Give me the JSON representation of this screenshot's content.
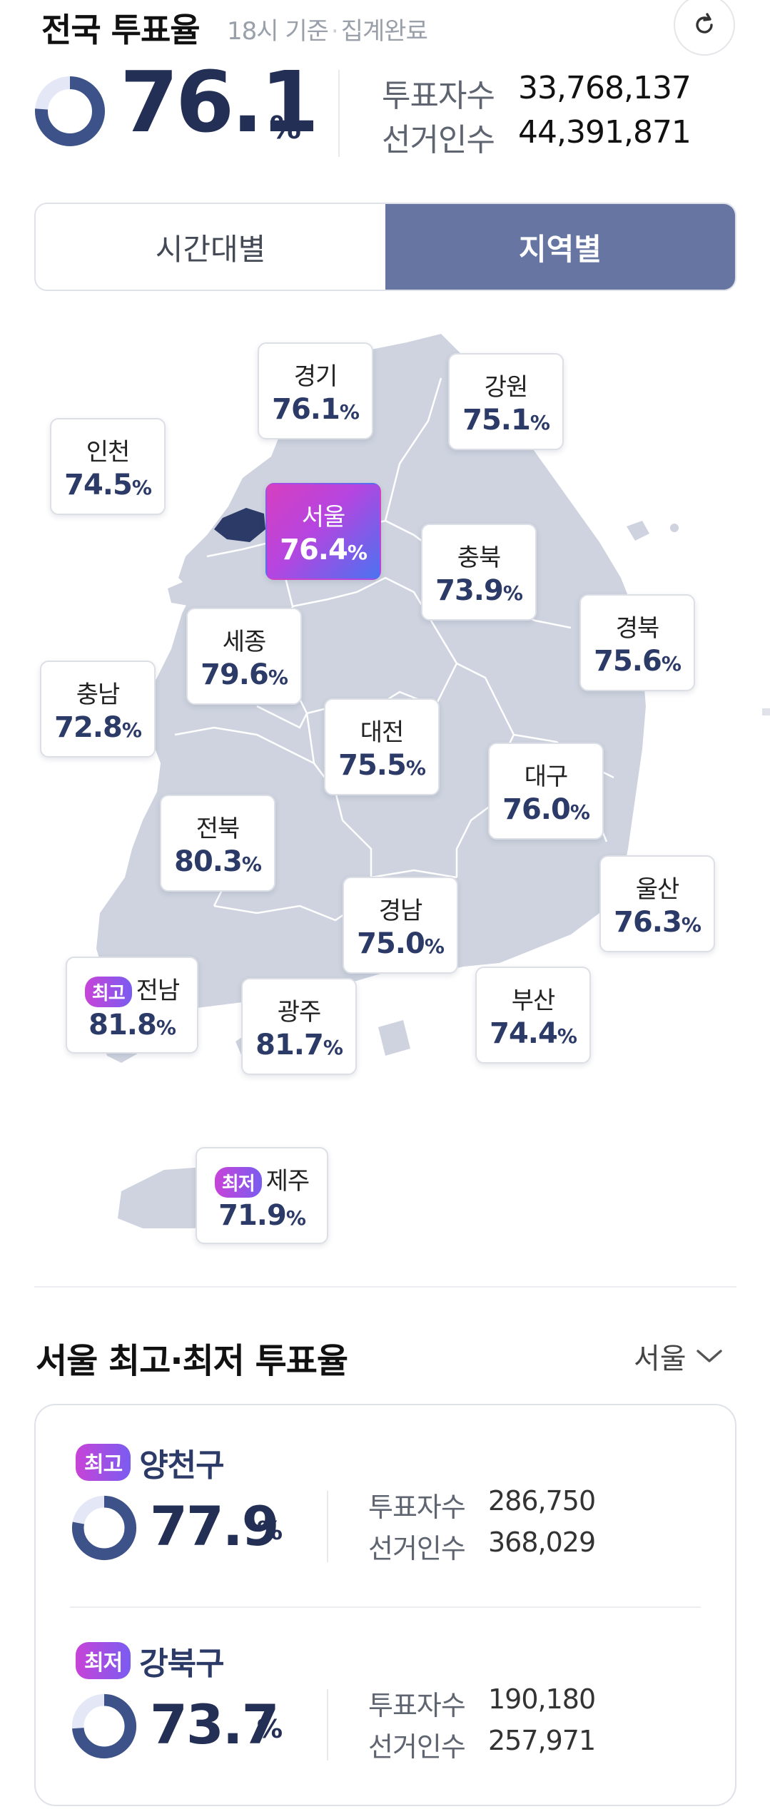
{
  "header": {
    "title": "전국 투표율",
    "time": "18시 기준",
    "status": "집계완료",
    "rate": "76.1",
    "unit": "%",
    "progress": 0.761,
    "votes_label": "투표자수",
    "votes_value": "33,768,137",
    "electors_label": "선거인수",
    "electors_value": "44,391,871",
    "refresh_icon": "refresh-icon"
  },
  "tabs": [
    {
      "label": "시간대별",
      "active": false
    },
    {
      "label": "지역별",
      "active": true
    }
  ],
  "map": {
    "colors": {
      "land": "#ced3df",
      "border": "#ffffff",
      "seoul": "#2b3a67"
    },
    "regions": [
      {
        "name": "경기",
        "rate": "76.1",
        "unit": "%"
      },
      {
        "name": "강원",
        "rate": "75.1",
        "unit": "%"
      },
      {
        "name": "인천",
        "rate": "74.5",
        "unit": "%"
      },
      {
        "name": "서울",
        "rate": "76.4",
        "unit": "%",
        "selected": true
      },
      {
        "name": "충북",
        "rate": "73.9",
        "unit": "%"
      },
      {
        "name": "세종",
        "rate": "79.6",
        "unit": "%"
      },
      {
        "name": "경북",
        "rate": "75.6",
        "unit": "%"
      },
      {
        "name": "충남",
        "rate": "72.8",
        "unit": "%"
      },
      {
        "name": "대전",
        "rate": "75.5",
        "unit": "%"
      },
      {
        "name": "대구",
        "rate": "76.0",
        "unit": "%"
      },
      {
        "name": "전북",
        "rate": "80.3",
        "unit": "%"
      },
      {
        "name": "경남",
        "rate": "75.0",
        "unit": "%"
      },
      {
        "name": "울산",
        "rate": "76.3",
        "unit": "%"
      },
      {
        "name": "전남",
        "rate": "81.8",
        "unit": "%",
        "badge": "최고"
      },
      {
        "name": "광주",
        "rate": "81.7",
        "unit": "%"
      },
      {
        "name": "부산",
        "rate": "74.4",
        "unit": "%"
      },
      {
        "name": "제주",
        "rate": "71.9",
        "unit": "%",
        "badge": "최저"
      }
    ]
  },
  "seoul_section": {
    "title": "서울 최고·최저 투표율",
    "select_value": "서울",
    "districts": [
      {
        "badge": "최고",
        "name": "양천구",
        "rate": "77.9",
        "unit": "%",
        "progress": 0.779,
        "votes_label": "투표자수",
        "votes_value": "286,750",
        "electors_label": "선거인수",
        "electors_value": "368,029"
      },
      {
        "badge": "최저",
        "name": "강북구",
        "rate": "73.7",
        "unit": "%",
        "progress": 0.737,
        "votes_label": "투표자수",
        "votes_value": "190,180",
        "electors_label": "선거인수",
        "electors_value": "257,971"
      }
    ]
  }
}
